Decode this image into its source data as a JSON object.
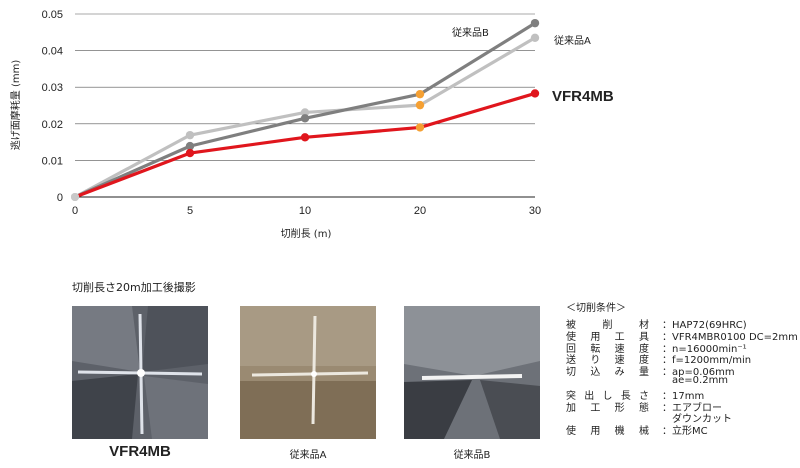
{
  "chart_data": {
    "type": "line",
    "x": [
      0,
      5,
      10,
      20,
      30
    ],
    "xlabel": "切削長 (m)",
    "ylabel": "逃げ面摩耗量 (mm)",
    "ylim": [
      0,
      0.05
    ],
    "xticks": [
      "0",
      "5",
      "10",
      "20",
      "30"
    ],
    "yticks": [
      "0",
      "0.01",
      "0.02",
      "0.03",
      "0.04",
      "0.05"
    ],
    "grid": "horizontal",
    "series": [
      {
        "name": "VFR4MB",
        "color": "#e0161d",
        "values": [
          0,
          0.012,
          0.0163,
          0.019,
          0.0283
        ]
      },
      {
        "name": "従来品A",
        "color": "#c0c0c0",
        "values": [
          0,
          0.0169,
          0.0231,
          0.0251,
          0.0435
        ]
      },
      {
        "name": "従来品B",
        "color": "#7f7f7f",
        "values": [
          0,
          0.0139,
          0.0215,
          0.0281,
          0.0475
        ]
      }
    ],
    "highlight_color": "#f5a033",
    "highlight_index": 3
  },
  "photos": {
    "caption": "切削長さ20m加工後撮影",
    "labels": [
      "VFR4MB",
      "従来品A",
      "従来品B"
    ]
  },
  "conditions": {
    "title": "＜切削条件＞",
    "rows": [
      {
        "key": "被削材",
        "value": "HAP72(69HRC)"
      },
      {
        "key": "使用工具",
        "value": "VFR4MBR0100 DC=2mm"
      },
      {
        "key": "回転速度",
        "value": "n=16000min⁻¹"
      },
      {
        "key": "送り速度",
        "value": "f=1200mm/min"
      },
      {
        "key": "切込み量",
        "value": "ap=0.06mm"
      },
      {
        "key": "",
        "value": "ae=0.2mm"
      },
      {
        "key": "突出し長さ",
        "value": "17mm"
      },
      {
        "key": "加工形態",
        "value": "エアブロー"
      },
      {
        "key": "",
        "value": "ダウンカット"
      },
      {
        "key": "使用機械",
        "value": "立形MC"
      }
    ]
  }
}
